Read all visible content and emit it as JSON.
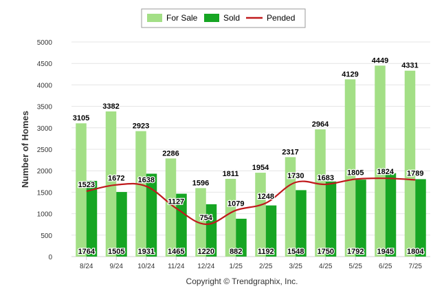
{
  "chart_data": {
    "type": "bar",
    "title": "",
    "ylabel": "Number of Homes",
    "xlabel": "",
    "ylim": [
      0,
      5000
    ],
    "yticks": [
      0,
      500,
      1000,
      1500,
      2000,
      2500,
      3000,
      3500,
      4000,
      4500,
      5000
    ],
    "grid": true,
    "legend_position": "top-center",
    "categories": [
      "8/24",
      "9/24",
      "10/24",
      "11/24",
      "12/24",
      "1/25",
      "2/25",
      "3/25",
      "4/25",
      "5/25",
      "6/25",
      "7/25"
    ],
    "series": [
      {
        "name": "For Sale",
        "kind": "bar",
        "color": "#a3df86",
        "values": [
          3105,
          3382,
          2923,
          2286,
          1596,
          1811,
          1954,
          2317,
          2964,
          4129,
          4449,
          4331
        ]
      },
      {
        "name": "Sold",
        "kind": "bar",
        "color": "#16a523",
        "values": [
          1764,
          1505,
          1931,
          1465,
          1220,
          882,
          1192,
          1548,
          1750,
          1792,
          1945,
          1804
        ]
      },
      {
        "name": "Pended",
        "kind": "line",
        "color": "#c0191c",
        "values": [
          1523,
          1672,
          1638,
          1127,
          754,
          1079,
          1248,
          1730,
          1683,
          1805,
          1824,
          1789
        ]
      }
    ],
    "footer": "Copyright © Trendgraphix, Inc."
  }
}
